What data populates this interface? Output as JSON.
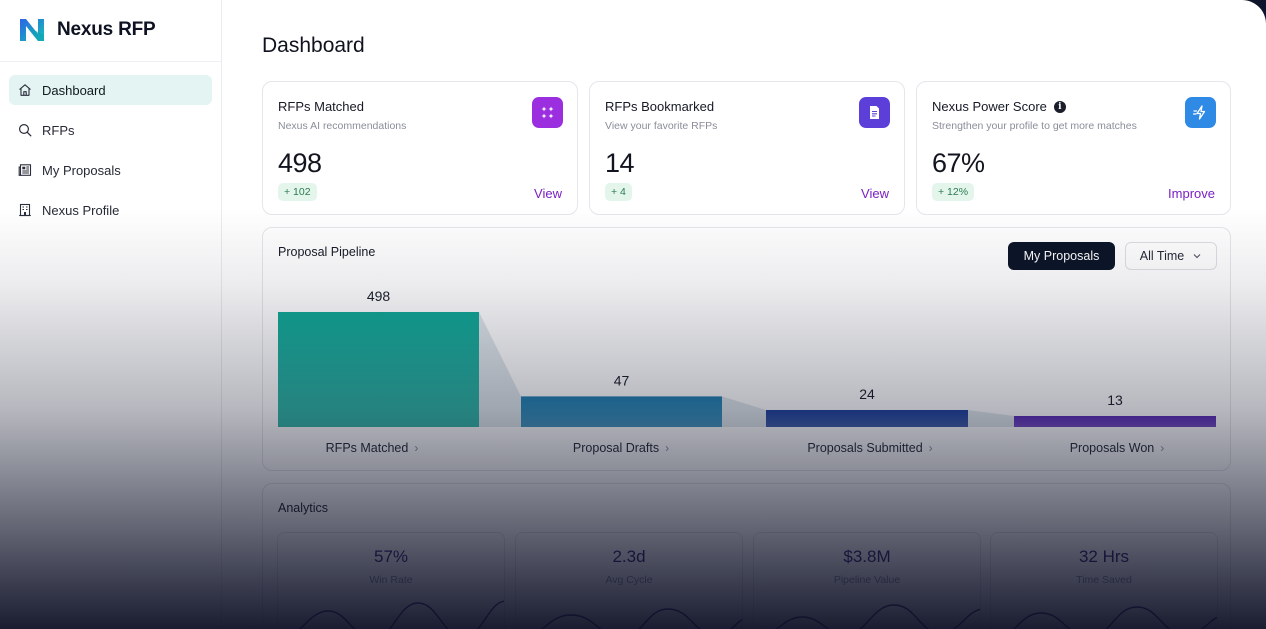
{
  "brand": {
    "name": "Nexus RFP"
  },
  "sidebar": {
    "items": [
      {
        "label": "Dashboard",
        "icon": "home-icon",
        "active": true
      },
      {
        "label": "RFPs",
        "icon": "search-icon",
        "active": false
      },
      {
        "label": "My Proposals",
        "icon": "newspaper-icon",
        "active": false
      },
      {
        "label": "Nexus Profile",
        "icon": "building-icon",
        "active": false
      }
    ]
  },
  "page": {
    "title": "Dashboard"
  },
  "cards": [
    {
      "title": "RFPs Matched",
      "subtitle": "Nexus AI recommendations",
      "value": "498",
      "delta": "+ 102",
      "link": "View",
      "icon": "sparkle-grid-icon",
      "icon_color": "#9b2fe0"
    },
    {
      "title": "RFPs Bookmarked",
      "subtitle": "View your favorite RFPs",
      "value": "14",
      "delta": "+ 4",
      "link": "View",
      "icon": "document-icon",
      "icon_color": "#5b3fd8"
    },
    {
      "title": "Nexus Power Score",
      "subtitle": "Strengthen your profile to get more matches",
      "value": "67%",
      "delta": "+ 12%",
      "link": "Improve",
      "icon": "lightning-icon",
      "icon_color": "#2f8ae6",
      "info_icon": "info-icon"
    }
  ],
  "pipeline": {
    "title": "Proposal Pipeline",
    "toggle_label": "My Proposals",
    "range_label": "All Time",
    "colors": [
      "#10a897",
      "#1f7fb0",
      "#1c3f9a",
      "#5a2bb5"
    ]
  },
  "chart_data": {
    "type": "bar",
    "categories": [
      "RFPs Matched",
      "Proposal Drafts",
      "Proposals Submitted",
      "Proposals Won"
    ],
    "values": [
      498,
      47,
      24,
      13
    ],
    "title": "Proposal Pipeline"
  },
  "analytics": {
    "title": "Analytics",
    "metrics": [
      {
        "value": "57%",
        "label": "Win Rate"
      },
      {
        "value": "2.3d",
        "label": "Avg Cycle"
      },
      {
        "value": "$3.8M",
        "label": "Pipeline Value"
      },
      {
        "value": "32 Hrs",
        "label": "Time Saved"
      }
    ]
  }
}
